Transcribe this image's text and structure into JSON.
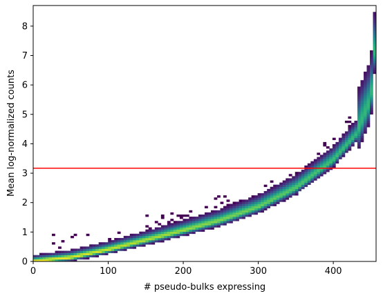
{
  "chart_data": {
    "type": "heatmap",
    "subtype": "2d-histogram",
    "title": "",
    "xlabel": "# pseudo-bulks expressing",
    "ylabel": "Mean log-normalized counts",
    "xlim": [
      0,
      457
    ],
    "ylim": [
      0,
      8.7
    ],
    "xticks": [
      0,
      100,
      200,
      300,
      400
    ],
    "yticks": [
      0,
      1,
      2,
      3,
      4,
      5,
      6,
      7,
      8
    ],
    "colormap": "viridis",
    "low_color": "#440154",
    "high_color": "#fde725",
    "threshold_line": {
      "y": 3.17,
      "color": "#ff0000"
    },
    "ridge": [
      {
        "x": 0,
        "y": 0.0
      },
      {
        "x": 50,
        "y": 0.13
      },
      {
        "x": 100,
        "y": 0.4
      },
      {
        "x": 150,
        "y": 0.72
      },
      {
        "x": 200,
        "y": 1.05
      },
      {
        "x": 250,
        "y": 1.4
      },
      {
        "x": 300,
        "y": 1.85
      },
      {
        "x": 350,
        "y": 2.5
      },
      {
        "x": 400,
        "y": 3.45
      },
      {
        "x": 430,
        "y": 4.3
      },
      {
        "x": 450,
        "y": 5.5
      },
      {
        "x": 457,
        "y": 7.8
      }
    ]
  }
}
